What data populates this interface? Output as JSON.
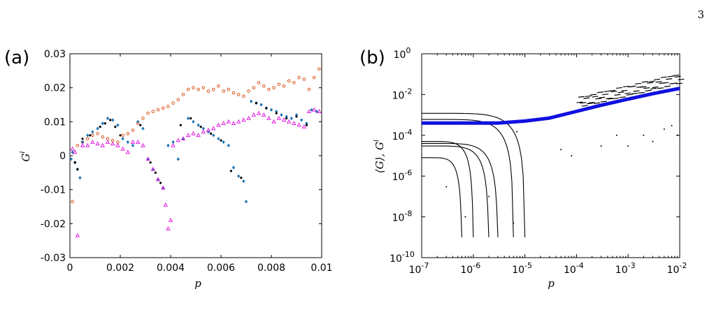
{
  "page_number": "3",
  "chart_data": [
    {
      "panel_label": "(a)",
      "type": "scatter",
      "xlabel": "p",
      "ylabel": "G",
      "ylabel_sup": "i",
      "xlim": [
        0,
        0.01
      ],
      "ylim": [
        -0.03,
        0.03
      ],
      "x_ticks": [
        0,
        0.002,
        0.004,
        0.006,
        0.008,
        0.01
      ],
      "x_tick_labels": [
        "0",
        "0.002",
        "0.004",
        "0.006",
        "0.008",
        "0.01"
      ],
      "y_ticks": [
        -0.03,
        -0.02,
        -0.01,
        0,
        0.01,
        0.02,
        0.03
      ],
      "y_tick_labels": [
        "-0.03",
        "-0.02",
        "-0.01",
        "0",
        "0.01",
        "0.02",
        "0.03"
      ],
      "grid": false,
      "colors": {
        "orange": "#d95319",
        "blue": "#1f77b4",
        "magenta": "#e020e0",
        "black": "#000000"
      },
      "series": [
        {
          "marker": "circle",
          "color": "#d95319",
          "points": [
            [
              0.0001,
              -0.0135
            ],
            [
              0.0003,
              0.003
            ],
            [
              0.0005,
              0.004
            ],
            [
              0.0007,
              0.005
            ],
            [
              0.0009,
              0.006
            ],
            [
              0.0011,
              0.0065
            ],
            [
              0.0013,
              0.0055
            ],
            [
              0.0015,
              0.005
            ],
            [
              0.0017,
              0.0045
            ],
            [
              0.0019,
              0.004
            ],
            [
              0.0021,
              0.006
            ],
            [
              0.0023,
              0.0065
            ],
            [
              0.0025,
              0.0075
            ],
            [
              0.0027,
              0.0095
            ],
            [
              0.0029,
              0.011
            ],
            [
              0.0031,
              0.0125
            ],
            [
              0.0033,
              0.013
            ],
            [
              0.0035,
              0.0135
            ],
            [
              0.0037,
              0.014
            ],
            [
              0.0039,
              0.0145
            ],
            [
              0.0041,
              0.0155
            ],
            [
              0.0043,
              0.0165
            ],
            [
              0.0045,
              0.018
            ],
            [
              0.0047,
              0.0195
            ],
            [
              0.0049,
              0.02
            ],
            [
              0.0051,
              0.0195
            ],
            [
              0.0053,
              0.02
            ],
            [
              0.0055,
              0.019
            ],
            [
              0.0057,
              0.0195
            ],
            [
              0.0059,
              0.0205
            ],
            [
              0.0061,
              0.019
            ],
            [
              0.0063,
              0.0195
            ],
            [
              0.0065,
              0.0185
            ],
            [
              0.0067,
              0.018
            ],
            [
              0.0069,
              0.0175
            ],
            [
              0.0071,
              0.019
            ],
            [
              0.0073,
              0.02
            ],
            [
              0.0075,
              0.0215
            ],
            [
              0.0077,
              0.0205
            ],
            [
              0.0079,
              0.0195
            ],
            [
              0.0081,
              0.02
            ],
            [
              0.0083,
              0.021
            ],
            [
              0.0085,
              0.0205
            ],
            [
              0.0087,
              0.022
            ],
            [
              0.0089,
              0.0215
            ],
            [
              0.0091,
              0.023
            ],
            [
              0.0093,
              0.0225
            ],
            [
              0.0095,
              0.0195
            ],
            [
              0.0097,
              0.023
            ],
            [
              0.0099,
              0.0255
            ]
          ]
        },
        {
          "marker": "diamond",
          "color": "#1f77b4",
          "points": [
            [
              5e-05,
              -0.001
            ],
            [
              0.0001,
              0.001
            ],
            [
              0.0002,
              -0.002
            ],
            [
              0.0003,
              -0.004
            ],
            [
              0.0004,
              -0.0065
            ],
            [
              0.0005,
              0.004
            ],
            [
              0.0007,
              0.006
            ],
            [
              0.0009,
              0.007
            ],
            [
              0.0011,
              0.008
            ],
            [
              0.0013,
              0.0095
            ],
            [
              0.0015,
              0.011
            ],
            [
              0.0017,
              0.0105
            ],
            [
              0.0019,
              0.009
            ],
            [
              0.0021,
              0.005
            ],
            [
              0.0023,
              0.004
            ],
            [
              0.0025,
              0.003
            ],
            [
              0.0027,
              0.01
            ],
            [
              0.0029,
              0.008
            ],
            [
              0.0031,
              -0.001
            ],
            [
              0.0033,
              -0.004
            ],
            [
              0.0035,
              -0.007
            ],
            [
              0.0037,
              -0.0095
            ],
            [
              0.0039,
              0.003
            ],
            [
              0.0041,
              0.004
            ],
            [
              0.0043,
              -0.001
            ],
            [
              0.0045,
              0.005
            ],
            [
              0.0047,
              0.011
            ],
            [
              0.0049,
              0.01
            ],
            [
              0.0051,
              0.009
            ],
            [
              0.0053,
              0.008
            ],
            [
              0.0055,
              0.007
            ],
            [
              0.0057,
              0.006
            ],
            [
              0.0059,
              0.005
            ],
            [
              0.0061,
              0.004
            ],
            [
              0.0063,
              0.003
            ],
            [
              0.0065,
              -0.0035
            ],
            [
              0.0067,
              -0.006
            ],
            [
              0.0069,
              -0.0075
            ],
            [
              0.007,
              -0.0135
            ],
            [
              0.0072,
              0.016
            ],
            [
              0.0074,
              0.0155
            ],
            [
              0.0076,
              0.015
            ],
            [
              0.0078,
              0.014
            ],
            [
              0.008,
              0.0135
            ],
            [
              0.0082,
              0.013
            ],
            [
              0.0084,
              0.012
            ],
            [
              0.0086,
              0.0115
            ],
            [
              0.0088,
              0.011
            ],
            [
              0.009,
              0.012
            ],
            [
              0.0092,
              0.0105
            ],
            [
              0.0094,
              0.0095
            ],
            [
              0.0096,
              0.0135
            ],
            [
              0.0098,
              0.013
            ]
          ]
        },
        {
          "marker": "triangle",
          "color": "#e020e0",
          "points": [
            [
              0.0001,
              0.002
            ],
            [
              0.0002,
              0.001
            ],
            [
              0.0003,
              -0.0235
            ],
            [
              0.0005,
              0.003
            ],
            [
              0.0007,
              0.003
            ],
            [
              0.0009,
              0.004
            ],
            [
              0.0011,
              0.0035
            ],
            [
              0.0013,
              0.003
            ],
            [
              0.0015,
              0.004
            ],
            [
              0.0017,
              0.0035
            ],
            [
              0.0019,
              0.003
            ],
            [
              0.0021,
              0.002
            ],
            [
              0.0023,
              0.001
            ],
            [
              0.0025,
              0.004
            ],
            [
              0.0027,
              0.004
            ],
            [
              0.0029,
              0.003
            ],
            [
              0.0031,
              -0.001
            ],
            [
              0.0033,
              -0.004
            ],
            [
              0.0035,
              -0.007
            ],
            [
              0.0037,
              -0.0095
            ],
            [
              0.0038,
              -0.0145
            ],
            [
              0.0039,
              -0.0215
            ],
            [
              0.004,
              -0.019
            ],
            [
              0.0041,
              0.003
            ],
            [
              0.0043,
              0.0045
            ],
            [
              0.0045,
              0.005
            ],
            [
              0.0047,
              0.006
            ],
            [
              0.0049,
              0.0065
            ],
            [
              0.0051,
              0.006
            ],
            [
              0.0053,
              0.007
            ],
            [
              0.0055,
              0.0075
            ],
            [
              0.0057,
              0.008
            ],
            [
              0.0059,
              0.009
            ],
            [
              0.0061,
              0.0095
            ],
            [
              0.0063,
              0.01
            ],
            [
              0.0065,
              0.0095
            ],
            [
              0.0067,
              0.01
            ],
            [
              0.0069,
              0.0105
            ],
            [
              0.0071,
              0.011
            ],
            [
              0.0073,
              0.012
            ],
            [
              0.0075,
              0.0125
            ],
            [
              0.0077,
              0.012
            ],
            [
              0.0079,
              0.011
            ],
            [
              0.0081,
              0.01
            ],
            [
              0.0083,
              0.011
            ],
            [
              0.0085,
              0.0105
            ],
            [
              0.0087,
              0.01
            ],
            [
              0.0089,
              0.0095
            ],
            [
              0.0091,
              0.009
            ],
            [
              0.0093,
              0.0085
            ],
            [
              0.0095,
              0.013
            ],
            [
              0.0097,
              0.0135
            ],
            [
              0.0099,
              0.013
            ]
          ]
        },
        {
          "marker": "dot",
          "color": "#000000",
          "points": [
            [
              0.0002,
              -0.002
            ],
            [
              0.0003,
              -0.004
            ],
            [
              0.0005,
              0.005
            ],
            [
              0.0008,
              0.006
            ],
            [
              0.0012,
              0.0085
            ],
            [
              0.0014,
              0.0095
            ],
            [
              0.0016,
              0.0105
            ],
            [
              0.0018,
              0.0085
            ],
            [
              0.002,
              0.006
            ],
            [
              0.0028,
              0.009
            ],
            [
              0.0032,
              -0.002
            ],
            [
              0.0034,
              -0.005
            ],
            [
              0.0036,
              -0.008
            ],
            [
              0.0044,
              0.009
            ],
            [
              0.0048,
              0.011
            ],
            [
              0.0052,
              0.0085
            ],
            [
              0.0056,
              0.0065
            ],
            [
              0.006,
              0.0045
            ],
            [
              0.0064,
              -0.0045
            ],
            [
              0.0068,
              -0.0065
            ],
            [
              0.0074,
              0.0155
            ],
            [
              0.0078,
              0.014
            ],
            [
              0.0082,
              0.0125
            ],
            [
              0.0086,
              0.011
            ],
            [
              0.009,
              0.0115
            ],
            [
              0.0094,
              0.009
            ]
          ]
        }
      ]
    },
    {
      "panel_label": "(b)",
      "type": "scatter",
      "xlabel": "p",
      "ylabel": "⟨G⟩, G",
      "ylabel_sup": "i",
      "x_scale": "log",
      "y_scale": "log",
      "xlim": [
        1e-07,
        0.01
      ],
      "ylim": [
        1e-10,
        1
      ],
      "x_tick_labels": [
        {
          "base": "10",
          "exp": "-7"
        },
        {
          "base": "10",
          "exp": "-6"
        },
        {
          "base": "10",
          "exp": "-5"
        },
        {
          "base": "10",
          "exp": "-4"
        },
        {
          "base": "10",
          "exp": "-3"
        },
        {
          "base": "10",
          "exp": "-2"
        }
      ],
      "y_tick_labels": [
        {
          "base": "10",
          "exp": "-10"
        },
        {
          "base": "10",
          "exp": "-8"
        },
        {
          "base": "10",
          "exp": "-6"
        },
        {
          "base": "10",
          "exp": "-4"
        },
        {
          "base": "10",
          "exp": "-2"
        },
        {
          "base": "10",
          "exp": "0"
        }
      ],
      "grid": false,
      "colors": {
        "mean": "#1010e0",
        "samples": "#000000"
      },
      "series": [
        {
          "name": "",
          "line": true,
          "color": "#1010e0",
          "points": [
            [
              1e-07,
              0.0004
            ],
            [
              3e-07,
              0.0004
            ],
            [
              1e-06,
              0.0004
            ],
            [
              3e-06,
              0.0004
            ],
            [
              1e-05,
              0.0005
            ],
            [
              3e-05,
              0.0007
            ],
            [
              0.0001,
              0.0015
            ],
            [
              0.0003,
              0.003
            ],
            [
              0.001,
              0.006
            ],
            [
              0.003,
              0.011
            ],
            [
              0.01,
              0.02
            ]
          ]
        },
        {
          "line": false,
          "color": "#000000",
          "marker": "dot",
          "curves": [
            {
              "start": 0.0012,
              "end": 1e-05
            },
            {
              "start": 0.0006,
              "end": 6e-06
            },
            {
              "start": 5e-05,
              "end": 1e-06
            },
            {
              "start": 4e-05,
              "end": 3e-06
            },
            {
              "start": 8e-06,
              "end": 6e-07
            },
            {
              "start": 3e-05,
              "end": 2e-06
            }
          ],
          "points": [
            [
              3e-07,
              3e-07
            ],
            [
              7e-07,
              1e-08
            ],
            [
              2e-06,
              1e-07
            ],
            [
              6e-06,
              5e-09
            ],
            [
              7e-06,
              0.00015
            ],
            [
              5e-05,
              2e-05
            ],
            [
              8e-05,
              1e-05
            ],
            [
              0.0003,
              3e-05
            ],
            [
              0.0006,
              0.0001
            ],
            [
              0.001,
              3e-05
            ],
            [
              0.002,
              0.0001
            ],
            [
              0.003,
              5e-05
            ],
            [
              0.005,
              0.0002
            ],
            [
              0.007,
              0.0003
            ],
            [
              0.009,
              0.0001
            ]
          ]
        }
      ]
    }
  ]
}
